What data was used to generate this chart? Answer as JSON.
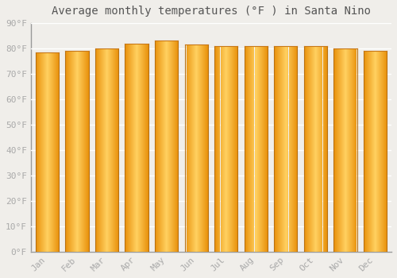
{
  "title": "Average monthly temperatures (°F ) in Santa Nino",
  "months": [
    "Jan",
    "Feb",
    "Mar",
    "Apr",
    "May",
    "Jun",
    "Jul",
    "Aug",
    "Sep",
    "Oct",
    "Nov",
    "Dec"
  ],
  "values": [
    78.5,
    79.0,
    80.0,
    82.0,
    83.0,
    81.5,
    81.0,
    81.0,
    81.0,
    81.0,
    80.0,
    79.0
  ],
  "background_color": "#f0eeea",
  "grid_color": "#ffffff",
  "ytick_labels": [
    "0°F",
    "10°F",
    "20°F",
    "30°F",
    "40°F",
    "50°F",
    "60°F",
    "70°F",
    "80°F",
    "90°F"
  ],
  "ytick_values": [
    0,
    10,
    20,
    30,
    40,
    50,
    60,
    70,
    80,
    90
  ],
  "ylim": [
    0,
    90
  ],
  "title_fontsize": 10,
  "tick_fontsize": 8,
  "font_color": "#aaaaaa",
  "title_color": "#555555",
  "bar_width": 0.78,
  "bar_left_color": "#E8900A",
  "bar_center_color": "#FFD060",
  "bar_right_color": "#E8900A",
  "bar_bottom_color": "#F0A020",
  "bar_gap_color": "#cccccc",
  "n_gradient": 60
}
